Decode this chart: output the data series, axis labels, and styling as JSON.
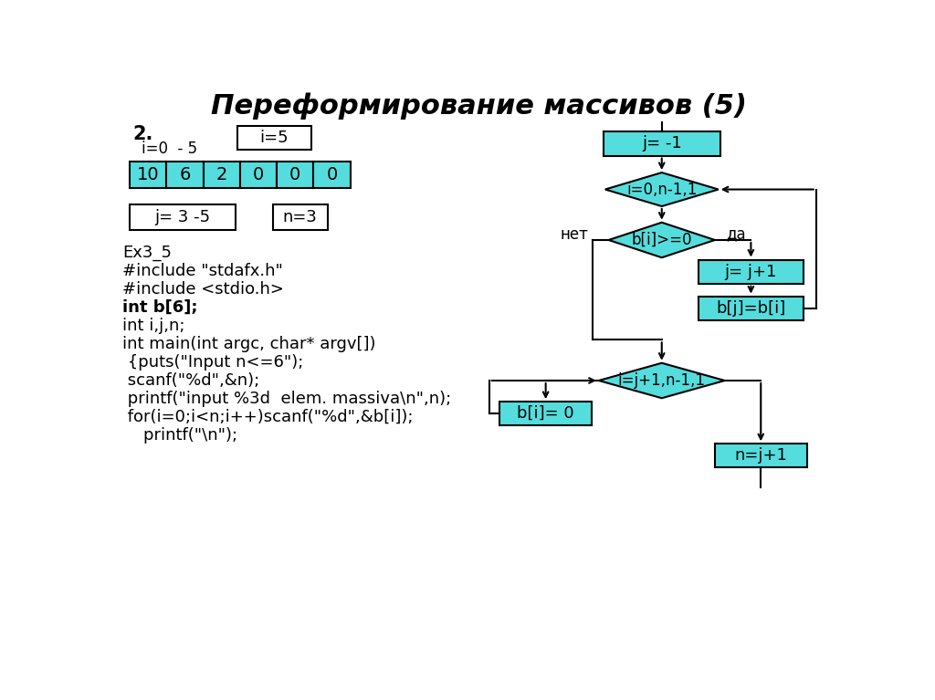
{
  "title": "Переформирование массивов (5)",
  "bg_color": "#ffffff",
  "cyan_fill": "#55DDDD",
  "array_values": [
    "10",
    "6",
    "2",
    "0",
    "0",
    "0"
  ],
  "label_2": "2.",
  "label_i05": "i=0  - 5",
  "label_i5_box": "i=5",
  "label_j35_box": "j= 3 -5",
  "label_n3_box": "n=3",
  "code_lines": [
    [
      "Ex3_5",
      false
    ],
    [
      "#include \"stdafx.h\"",
      false
    ],
    [
      "#include <stdio.h>",
      false
    ],
    [
      "int b[6];",
      true
    ],
    [
      "int i,j,n;",
      false
    ],
    [
      "int main(int argc, char* argv[])",
      false
    ],
    [
      " {puts(\"Input n<=6\");",
      false
    ],
    [
      " scanf(\"%d\",&n);",
      false
    ],
    [
      " printf(\"input %3d  elem. massiva\\n\",n);",
      false
    ],
    [
      " for(i=0;i<n;i++)scanf(\"%d\",&b[i]);",
      false
    ],
    [
      "    printf(\"\\n\");",
      false
    ]
  ],
  "fc_box1_label": "j= -1",
  "fc_diamond1_label": "i=0,n-1,1",
  "fc_diamond2_label": "b[i]>=0",
  "fc_no_label": "нет",
  "fc_yes_label": "да",
  "fc_box2_label": "j= j+1",
  "fc_box3_label": "b[j]=b[i]",
  "fc_diamond3_label": "i=j+1,n-1,1",
  "fc_box4_label": "b[i]= 0",
  "fc_box5_label": "n=j+1"
}
